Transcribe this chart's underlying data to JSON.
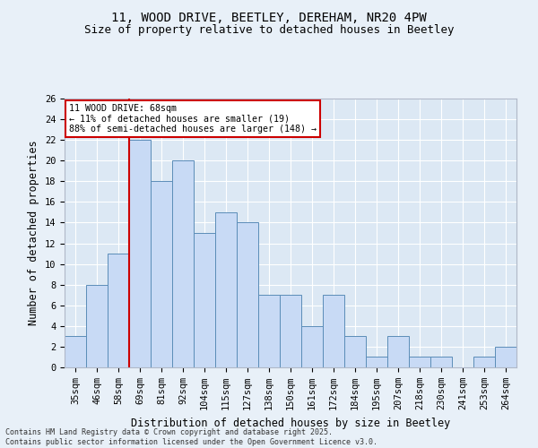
{
  "title_line1": "11, WOOD DRIVE, BEETLEY, DEREHAM, NR20 4PW",
  "title_line2": "Size of property relative to detached houses in Beetley",
  "xlabel": "Distribution of detached houses by size in Beetley",
  "ylabel": "Number of detached properties",
  "categories": [
    "35sqm",
    "46sqm",
    "58sqm",
    "69sqm",
    "81sqm",
    "92sqm",
    "104sqm",
    "115sqm",
    "127sqm",
    "138sqm",
    "150sqm",
    "161sqm",
    "172sqm",
    "184sqm",
    "195sqm",
    "207sqm",
    "218sqm",
    "230sqm",
    "241sqm",
    "253sqm",
    "264sqm"
  ],
  "values": [
    3,
    8,
    11,
    22,
    18,
    20,
    13,
    15,
    14,
    7,
    7,
    4,
    7,
    3,
    1,
    3,
    1,
    1,
    0,
    1,
    2
  ],
  "bar_color": "#c8daf5",
  "bar_edge_color": "#5b8db8",
  "vline_color": "#cc0000",
  "annotation_text": "11 WOOD DRIVE: 68sqm\n← 11% of detached houses are smaller (19)\n88% of semi-detached houses are larger (148) →",
  "annotation_box_color": "#cc0000",
  "annotation_text_color": "#000000",
  "ylim": [
    0,
    26
  ],
  "yticks": [
    0,
    2,
    4,
    6,
    8,
    10,
    12,
    14,
    16,
    18,
    20,
    22,
    24,
    26
  ],
  "bg_color": "#e8f0f8",
  "plot_bg_color": "#dce8f4",
  "grid_color": "#ffffff",
  "footer_text": "Contains HM Land Registry data © Crown copyright and database right 2025.\nContains public sector information licensed under the Open Government Licence v3.0.",
  "title_fontsize": 10,
  "subtitle_fontsize": 9,
  "axis_label_fontsize": 8.5,
  "tick_fontsize": 7.5,
  "footer_fontsize": 6
}
